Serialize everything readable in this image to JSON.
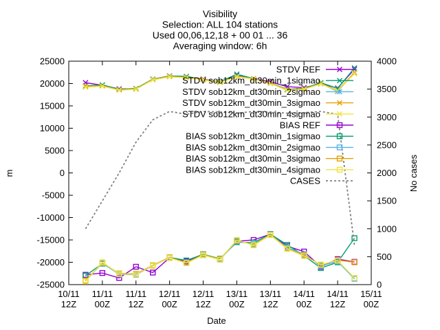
{
  "chart_data": {
    "type": "line",
    "title_lines": [
      "Visibility",
      "Selection: ALL     104 stations",
      "Used 00,06,12,18 + 00 01 ... 36",
      "Averaging window:  6h"
    ],
    "xlabel": "Date",
    "ylabel": "m",
    "y2label": "No cases",
    "x_range": [
      0,
      108
    ],
    "ylim": [
      -25000,
      25000
    ],
    "y2lim": [
      0,
      4000
    ],
    "x_ticks": [
      {
        "x": 0,
        "line1": "10/11",
        "line2": "12Z"
      },
      {
        "x": 12,
        "line1": "11/11",
        "line2": "00Z"
      },
      {
        "x": 24,
        "line1": "11/11",
        "line2": "12Z"
      },
      {
        "x": 36,
        "line1": "12/11",
        "line2": "00Z"
      },
      {
        "x": 48,
        "line1": "12/11",
        "line2": "12Z"
      },
      {
        "x": 60,
        "line1": "13/11",
        "line2": "00Z"
      },
      {
        "x": 72,
        "line1": "13/11",
        "line2": "12Z"
      },
      {
        "x": 84,
        "line1": "14/11",
        "line2": "00Z"
      },
      {
        "x": 96,
        "line1": "14/11",
        "line2": "12Z"
      },
      {
        "x": 108,
        "line1": "15/11",
        "line2": "00Z"
      }
    ],
    "y_ticks": [
      -25000,
      -20000,
      -15000,
      -10000,
      -5000,
      0,
      5000,
      10000,
      15000,
      20000,
      25000
    ],
    "y2_ticks": [
      0,
      500,
      1000,
      1500,
      2000,
      2500,
      3000,
      3500,
      4000
    ],
    "x": [
      6,
      12,
      18,
      24,
      30,
      36,
      42,
      48,
      54,
      60,
      66,
      72,
      78,
      84,
      90,
      96,
      102
    ],
    "series": [
      {
        "name": "STDV REF",
        "axis": "y",
        "color": "#9400d3",
        "marker": "x",
        "dash": "",
        "values": [
          20200,
          19600,
          18800,
          18800,
          20900,
          21700,
          21500,
          21000,
          20300,
          21800,
          21100,
          20400,
          19300,
          19100,
          19900,
          19000,
          23200
        ]
      },
      {
        "name": "STDV sob12km_dt30min_1sigmao",
        "axis": "y",
        "color": "#009e73",
        "marker": "x",
        "dash": "",
        "values": [
          19500,
          19700,
          18700,
          18900,
          21000,
          21700,
          21600,
          20900,
          20400,
          22100,
          21100,
          20100,
          18700,
          18900,
          20200,
          18900,
          23500
        ]
      },
      {
        "name": "STDV sob12km_dt30min_2sigmao",
        "axis": "y",
        "color": "#56b4e9",
        "marker": "x",
        "dash": "",
        "values": [
          19300,
          19500,
          18600,
          18800,
          20900,
          21600,
          21400,
          20800,
          20300,
          21700,
          21000,
          20000,
          18500,
          18800,
          20000,
          18200,
          22500
        ]
      },
      {
        "name": "STDV sob12km_dt30min_3sigmao",
        "axis": "y",
        "color": "#e69f00",
        "marker": "x",
        "dash": "",
        "values": [
          19400,
          19500,
          18600,
          18800,
          20900,
          21600,
          21400,
          20900,
          20300,
          21600,
          21100,
          20100,
          18600,
          18800,
          20000,
          18500,
          22400
        ]
      },
      {
        "name": "STDV sob12km_dt30min_4sigmao",
        "axis": "y",
        "color": "#f0e442",
        "marker": "x",
        "dash": "",
        "values": [
          19200,
          19400,
          18500,
          18700,
          20800,
          21500,
          21300,
          20800,
          20200,
          21500,
          21000,
          20000,
          18500,
          18700,
          19900,
          18400,
          22200
        ]
      },
      {
        "name": "BIAS REF",
        "axis": "y",
        "color": "#9400d3",
        "marker": "square",
        "dash": "",
        "values": [
          -22800,
          -22400,
          -23500,
          -21000,
          -22300,
          -19000,
          -19800,
          -18300,
          -19300,
          -15300,
          -15000,
          -13700,
          -16400,
          -17600,
          -21000,
          -19300,
          -19900
        ]
      },
      {
        "name": "BIAS sob12km_dt30min_1sigmao",
        "axis": "y",
        "color": "#009e73",
        "marker": "square",
        "dash": "",
        "values": [
          -23000,
          -20300,
          -22500,
          -22600,
          -20700,
          -18900,
          -19600,
          -18200,
          -19200,
          -15500,
          -15600,
          -13700,
          -16100,
          -18500,
          -21300,
          -20000,
          -14600
        ]
      },
      {
        "name": "BIAS sob12km_dt30min_2sigmao",
        "axis": "y",
        "color": "#56b4e9",
        "marker": "square",
        "dash": "",
        "values": [
          -24200,
          -20200,
          -22700,
          -22800,
          -20800,
          -19000,
          -20000,
          -18400,
          -19400,
          -15300,
          -15900,
          -13800,
          -16700,
          -18200,
          -20800,
          -19800,
          -23700
        ]
      },
      {
        "name": "BIAS sob12km_dt30min_3sigmao",
        "axis": "y",
        "color": "#e69f00",
        "marker": "square",
        "dash": "",
        "values": [
          -24100,
          -20100,
          -22500,
          -22600,
          -20700,
          -18900,
          -20100,
          -18300,
          -19300,
          -15100,
          -16100,
          -13800,
          -16900,
          -18400,
          -20600,
          -19500,
          -20000
        ]
      },
      {
        "name": "BIAS sob12km_dt30min_4sigmao",
        "axis": "y",
        "color": "#f0e442",
        "marker": "square",
        "dash": "",
        "values": [
          -24300,
          -20000,
          -22600,
          -22700,
          -20800,
          -19000,
          -20200,
          -18400,
          -19400,
          -15000,
          -16200,
          -13900,
          -17000,
          -18600,
          -20500,
          -19600,
          -23500
        ]
      },
      {
        "name": "CASES",
        "axis": "y2",
        "color": "#808080",
        "marker": "",
        "dash": "3,3",
        "values": [
          1000,
          1500,
          2000,
          2550,
          2950,
          3100,
          3050,
          3100,
          3090,
          3070,
          3100,
          3090,
          3070,
          3080,
          3100,
          3050,
          700
        ]
      }
    ],
    "legend_placement": "top-right",
    "grid": false
  }
}
